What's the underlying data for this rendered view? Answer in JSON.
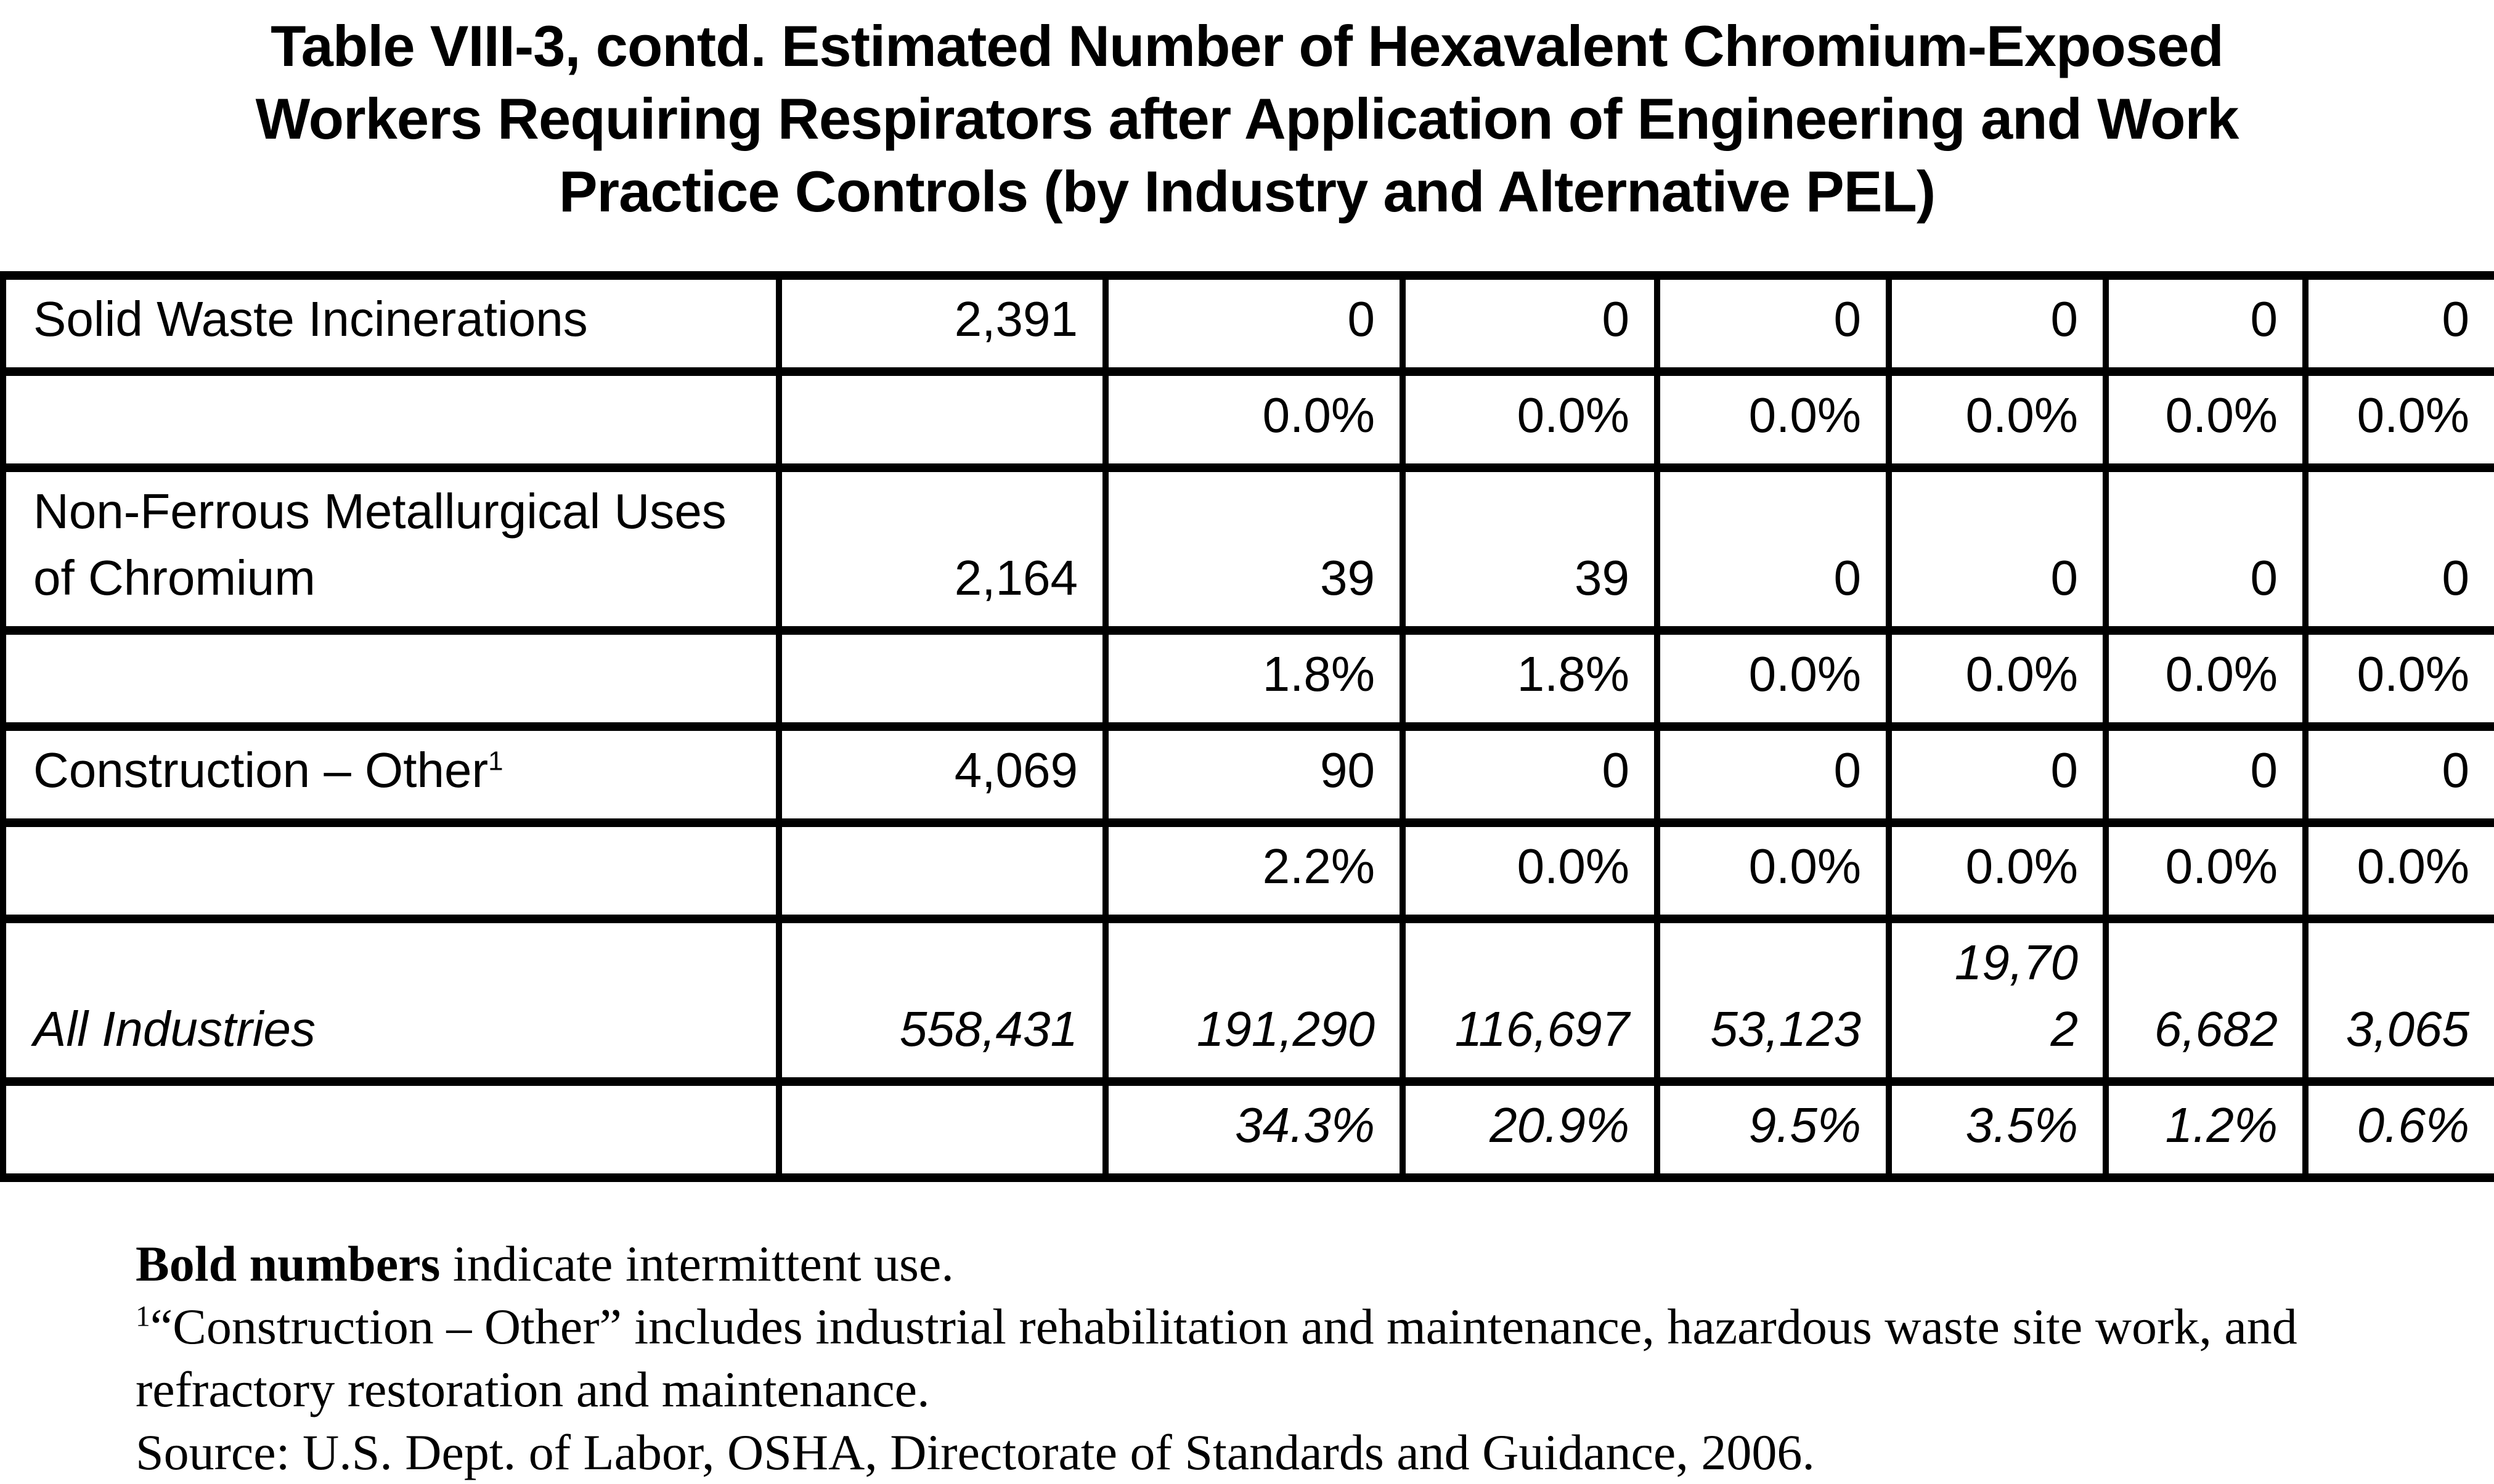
{
  "title": {
    "lines": [
      "Table VIII-3, contd. Estimated Number of Hexavalent Chromium-Exposed",
      "Workers Requiring Respirators after Application of Engineering and Work",
      "Practice Controls (by Industry and Alternative PEL)"
    ]
  },
  "table": {
    "rows": [
      {
        "type": "counts",
        "industry": "Solid Waste Incinerations",
        "industry_sup": "",
        "total": "2,391",
        "values": [
          "0",
          "0",
          "0",
          "0",
          "0",
          "0"
        ],
        "italic": false
      },
      {
        "type": "percents",
        "industry": "",
        "industry_sup": "",
        "total": "",
        "values": [
          "0.0%",
          "0.0%",
          "0.0%",
          "0.0%",
          "0.0%",
          "0.0%"
        ],
        "italic": false
      },
      {
        "type": "counts",
        "industry": "Non-Ferrous Metallurgical Uses of Chromium",
        "industry_sup": "",
        "total": "2,164",
        "values": [
          "39",
          "39",
          "0",
          "0",
          "0",
          "0"
        ],
        "italic": false
      },
      {
        "type": "percents",
        "industry": "",
        "industry_sup": "",
        "total": "",
        "values": [
          "1.8%",
          "1.8%",
          "0.0%",
          "0.0%",
          "0.0%",
          "0.0%"
        ],
        "italic": false
      },
      {
        "type": "counts",
        "industry": "Construction – Other",
        "industry_sup": "1",
        "total": "4,069",
        "values": [
          "90",
          "0",
          "0",
          "0",
          "0",
          "0"
        ],
        "italic": false
      },
      {
        "type": "percents",
        "industry": "",
        "industry_sup": "",
        "total": "",
        "values": [
          "2.2%",
          "0.0%",
          "0.0%",
          "0.0%",
          "0.0%",
          "0.0%"
        ],
        "italic": false
      },
      {
        "type": "counts",
        "industry": "All Industries",
        "industry_sup": "",
        "total": "558,431",
        "values": [
          "191,290",
          "116,697",
          "53,123",
          "19,70\n2",
          "6,682",
          "3,065"
        ],
        "italic": true
      },
      {
        "type": "percents",
        "industry": "",
        "industry_sup": "",
        "total": "",
        "values": [
          "34.3%",
          "20.9%",
          "9.5%",
          "3.5%",
          "1.2%",
          "0.6%"
        ],
        "italic": true
      }
    ]
  },
  "footnotes": {
    "bold_label": "Bold numbers",
    "bold_rest": " indicate intermittent use.",
    "construction_sup": "1",
    "construction_text": "“Construction – Other” includes industrial rehabilitation and maintenance, hazardous waste site work, and refractory restoration and maintenance.",
    "source": "Source: U.S. Dept. of Labor, OSHA, Directorate of Standards and Guidance, 2006."
  }
}
